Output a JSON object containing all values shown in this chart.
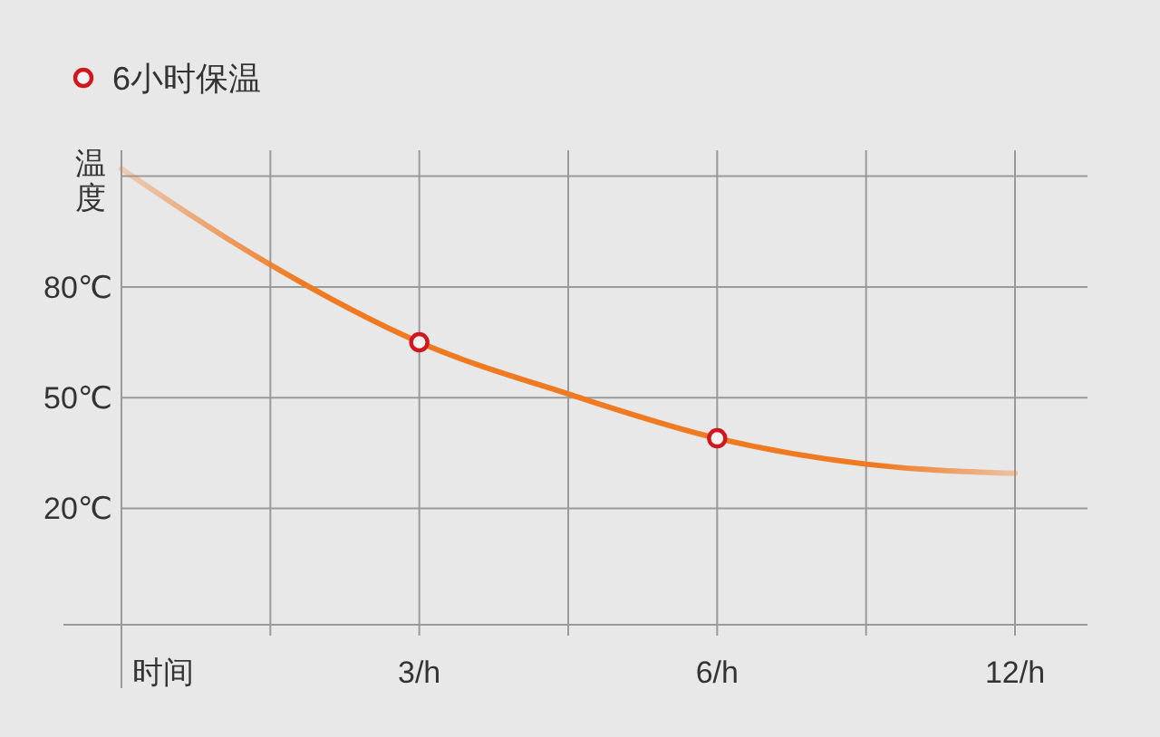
{
  "chart_data": {
    "type": "line",
    "xlabel": "时间",
    "ylabel": "温度",
    "categories": [
      null,
      null,
      "3/h",
      null,
      "6/h",
      null,
      "12/h"
    ],
    "series": [
      {
        "color": "#f07a22",
        "marker": "none",
        "values": [
          112,
          86,
          65,
          51,
          39,
          32,
          29.5
        ]
      },
      {
        "type": "scatter",
        "marker": "circle",
        "name": "6小时保温",
        "color": "#d0161e",
        "values": [
          null,
          null,
          65,
          null,
          39,
          null,
          null
        ]
      }
    ],
    "ylim": [
      -11.5,
      117
    ],
    "yticks": [
      {
        "value": 110,
        "label": null
      },
      {
        "value": 80,
        "label": "80℃"
      },
      {
        "value": 50,
        "label": "50℃"
      },
      {
        "value": 20,
        "label": "20℃"
      }
    ],
    "grid": true,
    "legend": "top left"
  }
}
